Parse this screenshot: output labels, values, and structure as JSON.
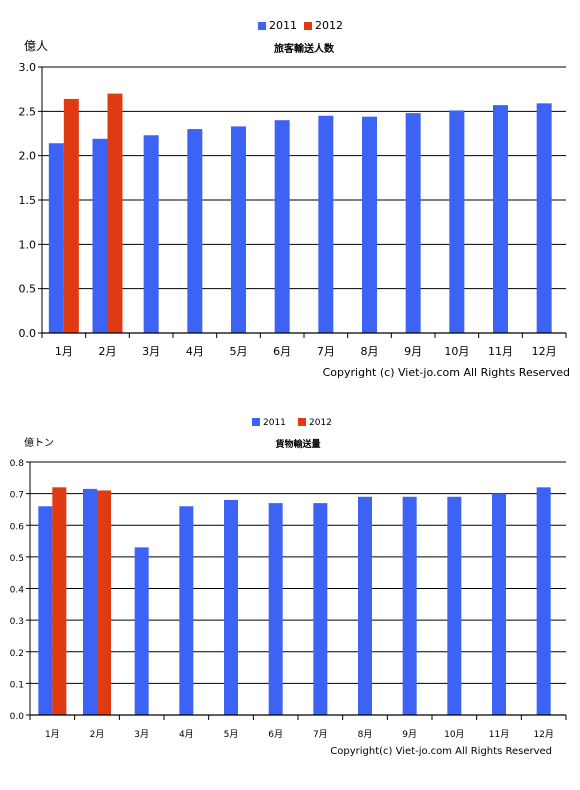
{
  "colors": {
    "s2011": "#3d63f5",
    "s2012": "#e03a12",
    "grid": "#000000"
  },
  "chart_data": [
    {
      "type": "bar",
      "title": "旅客輸送人数",
      "ylabel": "億人",
      "xlabel": "",
      "categories": [
        "1月",
        "2月",
        "3月",
        "4月",
        "5月",
        "6月",
        "7月",
        "8月",
        "9月",
        "10月",
        "11月",
        "12月"
      ],
      "ylim": [
        0,
        3.0
      ],
      "yticks": [
        "0.0",
        "0.5",
        "1.0",
        "1.5",
        "2.0",
        "2.5",
        "3.0"
      ],
      "grid": true,
      "legend": "top-center",
      "series": [
        {
          "name": "2011",
          "color": "#3d63f5",
          "values": [
            2.14,
            2.19,
            2.23,
            2.3,
            2.33,
            2.4,
            2.45,
            2.44,
            2.48,
            2.51,
            2.57,
            2.59
          ]
        },
        {
          "name": "2012",
          "color": "#e03a12",
          "values": [
            2.64,
            2.7,
            null,
            null,
            null,
            null,
            null,
            null,
            null,
            null,
            null,
            null
          ]
        }
      ],
      "copyright": "Copyright (c) Viet-jo.com All Rights Reserved"
    },
    {
      "type": "bar",
      "title": "貨物輸送量",
      "ylabel": "億トン",
      "xlabel": "",
      "categories": [
        "1月",
        "2月",
        "3月",
        "4月",
        "5月",
        "6月",
        "7月",
        "8月",
        "9月",
        "10月",
        "11月",
        "12月"
      ],
      "ylim": [
        0,
        0.8
      ],
      "yticks": [
        "0.0",
        "0.1",
        "0.2",
        "0.3",
        "0.4",
        "0.5",
        "0.6",
        "0.7",
        "0.8"
      ],
      "grid": true,
      "legend": "top-center",
      "series": [
        {
          "name": "2011",
          "color": "#3d63f5",
          "values": [
            0.66,
            0.715,
            0.53,
            0.66,
            0.68,
            0.67,
            0.67,
            0.69,
            0.69,
            0.69,
            0.7,
            0.72
          ]
        },
        {
          "name": "2012",
          "color": "#e03a12",
          "values": [
            0.72,
            0.71,
            null,
            null,
            null,
            null,
            null,
            null,
            null,
            null,
            null,
            null
          ]
        }
      ],
      "copyright": "Copyright(c) Viet-jo.com All Rights Reserved"
    }
  ]
}
